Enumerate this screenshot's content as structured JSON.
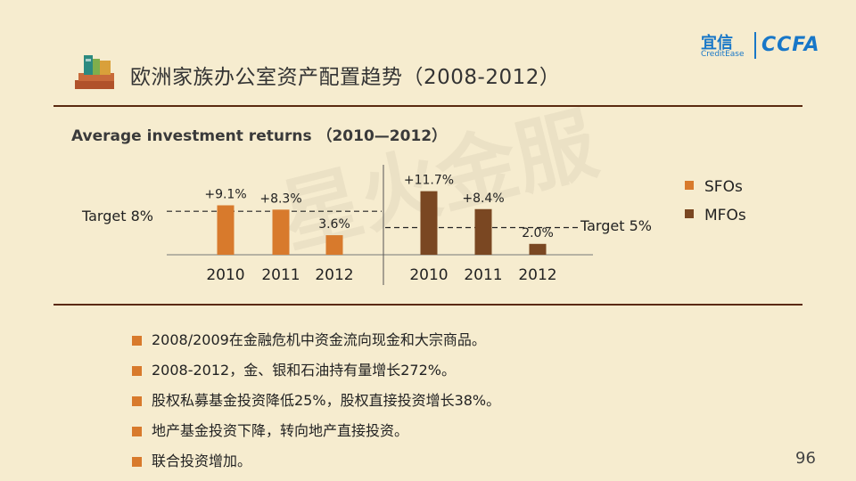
{
  "header": {
    "title": "欧洲家族办公室资产配置趋势（2008-2012）",
    "logo_yixin": "宜信",
    "logo_creditease": "CreditEase",
    "logo_ccfa": "CCFA"
  },
  "watermark": "星火金服",
  "chart_data": {
    "type": "bar",
    "title": "Average investment returns （2010—2012）",
    "series": [
      {
        "name": "SFOs",
        "color": "#d87a2c",
        "categories": [
          "2010",
          "2011",
          "2012"
        ],
        "values": [
          9.1,
          8.3,
          3.6
        ],
        "labels": [
          "+9.1%",
          "+8.3%",
          "3.6%"
        ],
        "target_value": 8,
        "target_label": "Target 8%"
      },
      {
        "name": "MFOs",
        "color": "#7a4722",
        "categories": [
          "2010",
          "2011",
          "2012"
        ],
        "values": [
          11.7,
          8.4,
          2.0
        ],
        "labels": [
          "+11.7%",
          "+8.4%",
          "2.0%"
        ],
        "target_value": 5,
        "target_label": "Target 5%"
      }
    ],
    "legend_position": "right",
    "grid": false
  },
  "bullets": [
    "2008/2009在金融危机中资金流向现金和大宗商品。",
    "2008-2012，金、银和石油持有量增长272%。",
    "股权私募基金投资降低25%，股权直接投资增长38%。",
    "地产基金投资下降，转向地产直接投资。",
    "联合投资增加。"
  ],
  "page_number": "96"
}
